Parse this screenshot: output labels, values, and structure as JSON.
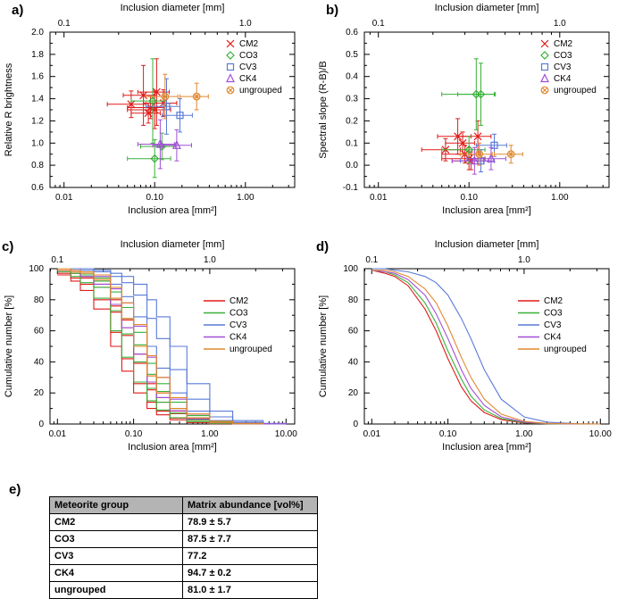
{
  "figure": {
    "panel_labels": {
      "a": "a)",
      "b": "b)",
      "c": "c)",
      "d": "d)",
      "e": "e)"
    },
    "colors": {
      "CM2": "#e01a1a",
      "CO3": "#38b038",
      "CV3": "#5a7ad8",
      "CK4": "#a24fd6",
      "ungrouped": "#e0882e"
    },
    "axis_color": "#000000"
  },
  "chart_data": [
    {
      "id": "a",
      "type": "scatter",
      "top_axis_title": "Inclusion diameter [mm]",
      "top_ticks": [
        {
          "label": "0.1",
          "area": 0.01
        },
        {
          "label": "1.0",
          "area": 1.0
        }
      ],
      "xlabel": "Inclusion area [mm²]",
      "ylabel": "Relative R brightness",
      "xlim": [
        0.007,
        3.5
      ],
      "ylim": [
        0.6,
        2.0
      ],
      "ytick_step": 0.2,
      "xticks": [
        {
          "v": 0.01,
          "label": "0.01"
        },
        {
          "v": 0.1,
          "label": "0.10"
        },
        {
          "v": 1,
          "label": "1.00"
        }
      ],
      "yticks": [
        {
          "v": 0.6,
          "label": "0.6"
        },
        {
          "v": 0.8,
          "label": "0.8"
        },
        {
          "v": 1.0,
          "label": "1.0"
        },
        {
          "v": 1.2,
          "label": "1.2"
        },
        {
          "v": 1.4,
          "label": "1.4"
        },
        {
          "v": 1.6,
          "label": "1.6"
        },
        {
          "v": 1.8,
          "label": "1.8"
        },
        {
          "v": 2.0,
          "label": "2.0"
        }
      ],
      "legend": [
        "CM2",
        "CO3",
        "CV3",
        "CK4",
        "ungrouped"
      ],
      "series": [
        {
          "name": "CM2",
          "marker": "x",
          "points": [
            {
              "x": 0.055,
              "y": 1.35,
              "ex": 0.025,
              "ey": 0.12
            },
            {
              "x": 0.075,
              "y": 1.43,
              "ex": 0.03,
              "ey": 0.27
            },
            {
              "x": 0.085,
              "y": 1.27,
              "ex": 0.03,
              "ey": 0.09
            },
            {
              "x": 0.09,
              "y": 1.32,
              "ex": 0.04,
              "ey": 0.1
            },
            {
              "x": 0.1,
              "y": 1.3,
              "ex": 0.05,
              "ey": 0.17
            },
            {
              "x": 0.105,
              "y": 1.46,
              "ex": 0.04,
              "ey": 0.3
            },
            {
              "x": 0.125,
              "y": 1.36,
              "ex": 0.05,
              "ey": 0.12
            }
          ]
        },
        {
          "name": "CO3",
          "marker": "diamond",
          "points": [
            {
              "x": 0.095,
              "y": 1.38,
              "ex": 0.04,
              "ey": 0.38
            },
            {
              "x": 0.1,
              "y": 0.86,
              "ex": 0.05,
              "ey": 0.17
            },
            {
              "x": 0.12,
              "y": 0.97,
              "ex": 0.05,
              "ey": 0.12
            }
          ]
        },
        {
          "name": "CV3",
          "marker": "square",
          "points": [
            {
              "x": 0.135,
              "y": 1.33,
              "ex": 0.055,
              "ey": 0.25
            },
            {
              "x": 0.19,
              "y": 1.25,
              "ex": 0.07,
              "ey": 0.15
            }
          ]
        },
        {
          "name": "CK4",
          "marker": "triangle",
          "points": [
            {
              "x": 0.115,
              "y": 0.99,
              "ex": 0.05,
              "ey": 0.22
            },
            {
              "x": 0.175,
              "y": 0.98,
              "ex": 0.08,
              "ey": 0.14
            }
          ]
        },
        {
          "name": "ungrouped",
          "marker": "circle-x",
          "points": [
            {
              "x": 0.13,
              "y": 1.42,
              "ex": 0.05,
              "ey": 0.2
            },
            {
              "x": 0.29,
              "y": 1.42,
              "ex": 0.1,
              "ey": 0.12
            }
          ]
        }
      ]
    },
    {
      "id": "b",
      "type": "scatter",
      "top_axis_title": "Inclusion diameter [mm]",
      "top_ticks": [
        {
          "label": "0.1",
          "area": 0.01
        },
        {
          "label": "1.0",
          "area": 1.0
        }
      ],
      "xlabel": "Inclusion area [mm²]",
      "ylabel": "Spectral slope (R-B)/B",
      "xlim": [
        0.007,
        3.5
      ],
      "ylim": [
        -0.1,
        0.6
      ],
      "ytick_step": 0.1,
      "xticks": [
        {
          "v": 0.01,
          "label": "0.01"
        },
        {
          "v": 0.1,
          "label": "0.10"
        },
        {
          "v": 1,
          "label": "1.00"
        }
      ],
      "yticks": [
        {
          "v": -0.1,
          "label": "-0.1"
        },
        {
          "v": 0.0,
          "label": "0.0"
        },
        {
          "v": 0.1,
          "label": "0.1"
        },
        {
          "v": 0.2,
          "label": "0.2"
        },
        {
          "v": 0.3,
          "label": "0.3"
        },
        {
          "v": 0.4,
          "label": "0.4"
        },
        {
          "v": 0.5,
          "label": "0.5"
        },
        {
          "v": 0.6,
          "label": "0.6"
        }
      ],
      "legend": [
        "CM2",
        "CO3",
        "CV3",
        "CK4",
        "ungrouped"
      ],
      "series": [
        {
          "name": "CM2",
          "marker": "x",
          "points": [
            {
              "x": 0.055,
              "y": 0.07,
              "ex": 0.025,
              "ey": 0.05
            },
            {
              "x": 0.075,
              "y": 0.13,
              "ex": 0.03,
              "ey": 0.08
            },
            {
              "x": 0.085,
              "y": 0.1,
              "ex": 0.03,
              "ey": 0.05
            },
            {
              "x": 0.09,
              "y": 0.05,
              "ex": 0.04,
              "ey": 0.04
            },
            {
              "x": 0.1,
              "y": 0.03,
              "ex": 0.05,
              "ey": 0.05
            },
            {
              "x": 0.105,
              "y": 0.02,
              "ex": 0.04,
              "ey": 0.04
            },
            {
              "x": 0.125,
              "y": 0.13,
              "ex": 0.05,
              "ey": 0.07
            }
          ]
        },
        {
          "name": "CO3",
          "marker": "diamond",
          "points": [
            {
              "x": 0.12,
              "y": 0.32,
              "ex": 0.07,
              "ey": 0.16
            },
            {
              "x": 0.135,
              "y": 0.32,
              "ex": 0.06,
              "ey": 0.14
            },
            {
              "x": 0.1,
              "y": 0.07,
              "ex": 0.05,
              "ey": 0.06
            }
          ]
        },
        {
          "name": "CV3",
          "marker": "square",
          "points": [
            {
              "x": 0.135,
              "y": 0.02,
              "ex": 0.055,
              "ey": 0.05
            },
            {
              "x": 0.19,
              "y": 0.09,
              "ex": 0.07,
              "ey": 0.05
            }
          ]
        },
        {
          "name": "CK4",
          "marker": "triangle",
          "points": [
            {
              "x": 0.115,
              "y": 0.02,
              "ex": 0.05,
              "ey": 0.06
            },
            {
              "x": 0.175,
              "y": 0.03,
              "ex": 0.08,
              "ey": 0.05
            }
          ]
        },
        {
          "name": "ungrouped",
          "marker": "circle-x",
          "points": [
            {
              "x": 0.13,
              "y": 0.05,
              "ex": 0.05,
              "ey": 0.05
            },
            {
              "x": 0.29,
              "y": 0.05,
              "ex": 0.1,
              "ey": 0.04
            }
          ]
        }
      ]
    },
    {
      "id": "c",
      "type": "line",
      "step": true,
      "top_axis_title": "Inclusion diameter [mm]",
      "top_ticks": [
        {
          "label": "0.1",
          "area": 0.01
        },
        {
          "label": "1.0",
          "area": 1.0
        }
      ],
      "xlabel": "Inclusion area [mm²]",
      "ylabel": "Cumulative number [%]",
      "xlim": [
        0.008,
        13
      ],
      "ylim": [
        0,
        100
      ],
      "ytick_step": 20,
      "xticks": [
        {
          "v": 0.01,
          "label": "0.01"
        },
        {
          "v": 0.1,
          "label": "0.10"
        },
        {
          "v": 1,
          "label": "1.00"
        },
        {
          "v": 10,
          "label": "10.00"
        }
      ],
      "yticks": [
        {
          "v": 0,
          "label": "0"
        },
        {
          "v": 20,
          "label": "20"
        },
        {
          "v": 40,
          "label": "40"
        },
        {
          "v": 60,
          "label": "60"
        },
        {
          "v": 80,
          "label": "80"
        },
        {
          "v": 100,
          "label": "100"
        }
      ],
      "legend": [
        "CM2",
        "CO3",
        "CV3",
        "CK4",
        "ungrouped"
      ],
      "x": [
        0.01,
        0.015,
        0.02,
        0.03,
        0.05,
        0.07,
        0.1,
        0.15,
        0.2,
        0.3,
        0.5,
        1,
        2,
        5,
        10
      ],
      "curves": [
        {
          "group": "CM2",
          "y": [
            96,
            92,
            86,
            74,
            50,
            34,
            20,
            10,
            5.9,
            2.7,
            1,
            0.2,
            0,
            0,
            0
          ]
        },
        {
          "group": "CM2",
          "y": [
            97,
            94,
            90,
            80,
            59,
            42,
            26,
            14,
            8.3,
            3.8,
            1.4,
            0.4,
            0.1,
            0,
            0
          ]
        },
        {
          "group": "CM2",
          "y": [
            98,
            97,
            94,
            88,
            72,
            57,
            39,
            22,
            14,
            6.6,
            2.5,
            0.6,
            0.2,
            0,
            0
          ]
        },
        {
          "group": "CM2",
          "y": [
            99,
            97,
            95,
            90,
            76,
            62,
            45,
            26,
            17,
            8.3,
            3.1,
            0.8,
            0.2,
            0,
            0
          ]
        },
        {
          "group": "CM2",
          "y": [
            99,
            98,
            96,
            92,
            80,
            67,
            50,
            31,
            20,
            10,
            3.8,
            1,
            0.2,
            0,
            0
          ]
        },
        {
          "group": "CO3",
          "y": [
            98,
            95,
            91,
            81,
            60,
            43,
            27,
            15,
            9,
            4,
            1.5,
            0.4,
            0,
            0,
            0
          ]
        },
        {
          "group": "CO3",
          "y": [
            99,
            97,
            95,
            88,
            73,
            58,
            40,
            23,
            14,
            7,
            2.6,
            0.7,
            0.2,
            0,
            0
          ]
        },
        {
          "group": "CO3",
          "y": [
            100,
            98,
            96,
            92,
            81,
            68,
            51,
            32,
            21,
            10,
            4,
            1,
            0.3,
            0,
            0
          ]
        },
        {
          "group": "CO3",
          "y": [
            99,
            98,
            97,
            94,
            85,
            75,
            59,
            39,
            26,
            14,
            5.4,
            1.4,
            0.4,
            0.1,
            0
          ]
        },
        {
          "group": "CV3",
          "y": [
            100,
            99,
            98,
            96,
            90,
            82,
            69,
            50,
            36,
            20,
            8.3,
            2.2,
            0.6,
            0.1,
            0
          ]
        },
        {
          "group": "CV3",
          "y": [
            100,
            100,
            99,
            98,
            95,
            91,
            83,
            68,
            55,
            35,
            16,
            4.6,
            1.2,
            0.2,
            0
          ]
        },
        {
          "group": "CV3",
          "y": [
            100,
            100,
            100,
            99,
            97,
            95,
            90,
            80,
            69,
            50,
            26,
            8.3,
            2.2,
            0.4,
            0.1
          ]
        },
        {
          "group": "CK4",
          "y": [
            99,
            98,
            95,
            90,
            77,
            62,
            45,
            27,
            17,
            8.5,
            3.2,
            0.8,
            0.2,
            0,
            0
          ]
        },
        {
          "group": "CK4",
          "y": [
            99,
            99,
            98,
            95,
            87,
            78,
            63,
            43,
            30,
            16,
            6.3,
            1.7,
            0.4,
            0.1,
            0
          ]
        },
        {
          "group": "ungrouped",
          "y": [
            99,
            98,
            97,
            93,
            81,
            68,
            50,
            31,
            20,
            10,
            3.9,
            1,
            0.2,
            0,
            0
          ]
        },
        {
          "group": "ungrouped",
          "y": [
            100,
            99,
            98,
            96,
            88,
            78,
            64,
            44,
            30,
            17,
            6.5,
            1.8,
            0.4,
            0,
            0
          ]
        }
      ]
    },
    {
      "id": "d",
      "type": "line",
      "step": false,
      "top_axis_title": "Inclusion diameter [mm]",
      "top_ticks": [
        {
          "label": "0.1",
          "area": 0.01
        },
        {
          "label": "1.0",
          "area": 1.0
        }
      ],
      "xlabel": "Inclusion area [mm²]",
      "ylabel": "Cumulative number [%]",
      "xlim": [
        0.008,
        13
      ],
      "ylim": [
        0,
        100
      ],
      "ytick_step": 20,
      "xticks": [
        {
          "v": 0.01,
          "label": "0.01"
        },
        {
          "v": 0.1,
          "label": "0.10"
        },
        {
          "v": 1,
          "label": "1.00"
        },
        {
          "v": 10,
          "label": "10.00"
        }
      ],
      "yticks": [
        {
          "v": 0,
          "label": "0"
        },
        {
          "v": 20,
          "label": "20"
        },
        {
          "v": 40,
          "label": "40"
        },
        {
          "v": 60,
          "label": "60"
        },
        {
          "v": 80,
          "label": "80"
        },
        {
          "v": 100,
          "label": "100"
        }
      ],
      "legend": [
        "CM2",
        "CO3",
        "CV3",
        "CK4",
        "ungrouped"
      ],
      "x": [
        0.01,
        0.015,
        0.02,
        0.03,
        0.05,
        0.07,
        0.1,
        0.15,
        0.2,
        0.3,
        0.5,
        1,
        2,
        5,
        10
      ],
      "curves": [
        {
          "group": "CM2",
          "y": [
            99,
            97,
            95,
            89,
            74,
            60,
            42,
            24,
            15,
            7.4,
            2.8,
            0.7,
            0.2,
            0,
            0
          ]
        },
        {
          "group": "CO3",
          "y": [
            99,
            98,
            96,
            91,
            78,
            65,
            47,
            29,
            18,
            9.1,
            3.5,
            0.9,
            0.2,
            0,
            0
          ]
        },
        {
          "group": "CV3",
          "y": [
            100,
            100,
            99,
            98,
            95,
            91,
            83,
            68,
            55,
            35,
            16,
            4.6,
            1.2,
            0.2,
            0
          ]
        },
        {
          "group": "CK4",
          "y": [
            99,
            98,
            97,
            93,
            83,
            71,
            55,
            35,
            23,
            12,
            4.6,
            1.2,
            0.3,
            0,
            0
          ]
        },
        {
          "group": "ungrouped",
          "y": [
            99,
            99,
            98,
            95,
            87,
            78,
            63,
            43,
            30,
            16,
            6.3,
            1.7,
            0.4,
            0.1,
            0
          ]
        }
      ]
    },
    {
      "id": "e",
      "type": "table",
      "headers": [
        "Meteorite group",
        "Matrix abundance [vol%]"
      ],
      "rows": [
        [
          "CM2",
          "78.9 ± 5.7"
        ],
        [
          "CO3",
          "87.5 ± 7.7"
        ],
        [
          "CV3",
          "77.2"
        ],
        [
          "CK4",
          "94.7 ± 0.2"
        ],
        [
          "ungrouped",
          "81.0 ± 1.7"
        ]
      ]
    }
  ]
}
